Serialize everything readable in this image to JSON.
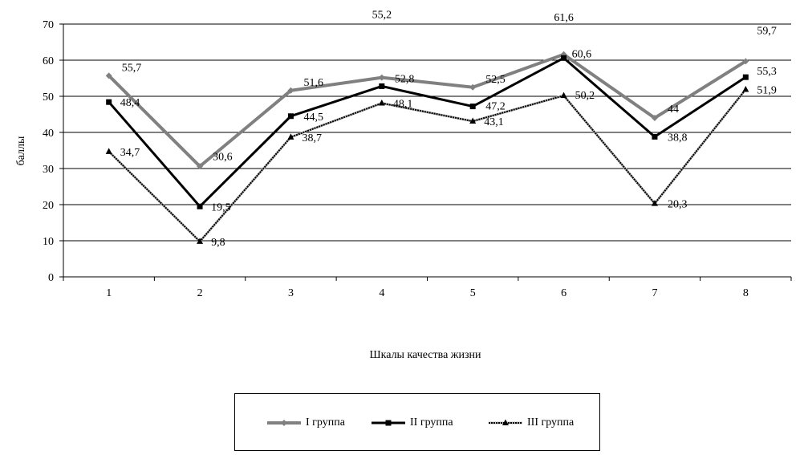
{
  "chart_data": {
    "type": "line",
    "title": "",
    "xlabel": "Шкалы качества жизни",
    "ylabel": "баллы",
    "categories": [
      "1",
      "2",
      "3",
      "4",
      "5",
      "6",
      "7",
      "8"
    ],
    "ylim": [
      0,
      70
    ],
    "yticks": [
      0,
      10,
      20,
      30,
      40,
      50,
      60,
      70
    ],
    "grid": "horizontal",
    "legend_position": "bottom",
    "series": [
      {
        "name": "I группа",
        "color": "#808080",
        "marker": "diamond",
        "values": [
          55.7,
          30.6,
          51.6,
          55.2,
          52.5,
          61.6,
          44,
          59.7
        ],
        "labels": [
          "55,7",
          "30,6",
          "51,6",
          "55,2",
          "52,5",
          "61,6",
          "44",
          "59,7"
        ]
      },
      {
        "name": "II группа",
        "color": "#000000",
        "marker": "square",
        "values": [
          48.4,
          19.5,
          44.5,
          52.8,
          47.2,
          60.6,
          38.8,
          55.3
        ],
        "labels": [
          "48,4",
          "19,5",
          "44,5",
          "52,8",
          "47,2",
          "60,6",
          "38,8",
          "55,3"
        ]
      },
      {
        "name": "III группа",
        "color": "#000000",
        "marker": "triangle",
        "values": [
          34.7,
          9.8,
          38.7,
          48.1,
          43.1,
          50.2,
          20.3,
          51.9
        ],
        "labels": [
          "34,7",
          "9,8",
          "38,7",
          "48,1",
          "43,1",
          "50,2",
          "20,3",
          "51,9"
        ]
      }
    ]
  }
}
